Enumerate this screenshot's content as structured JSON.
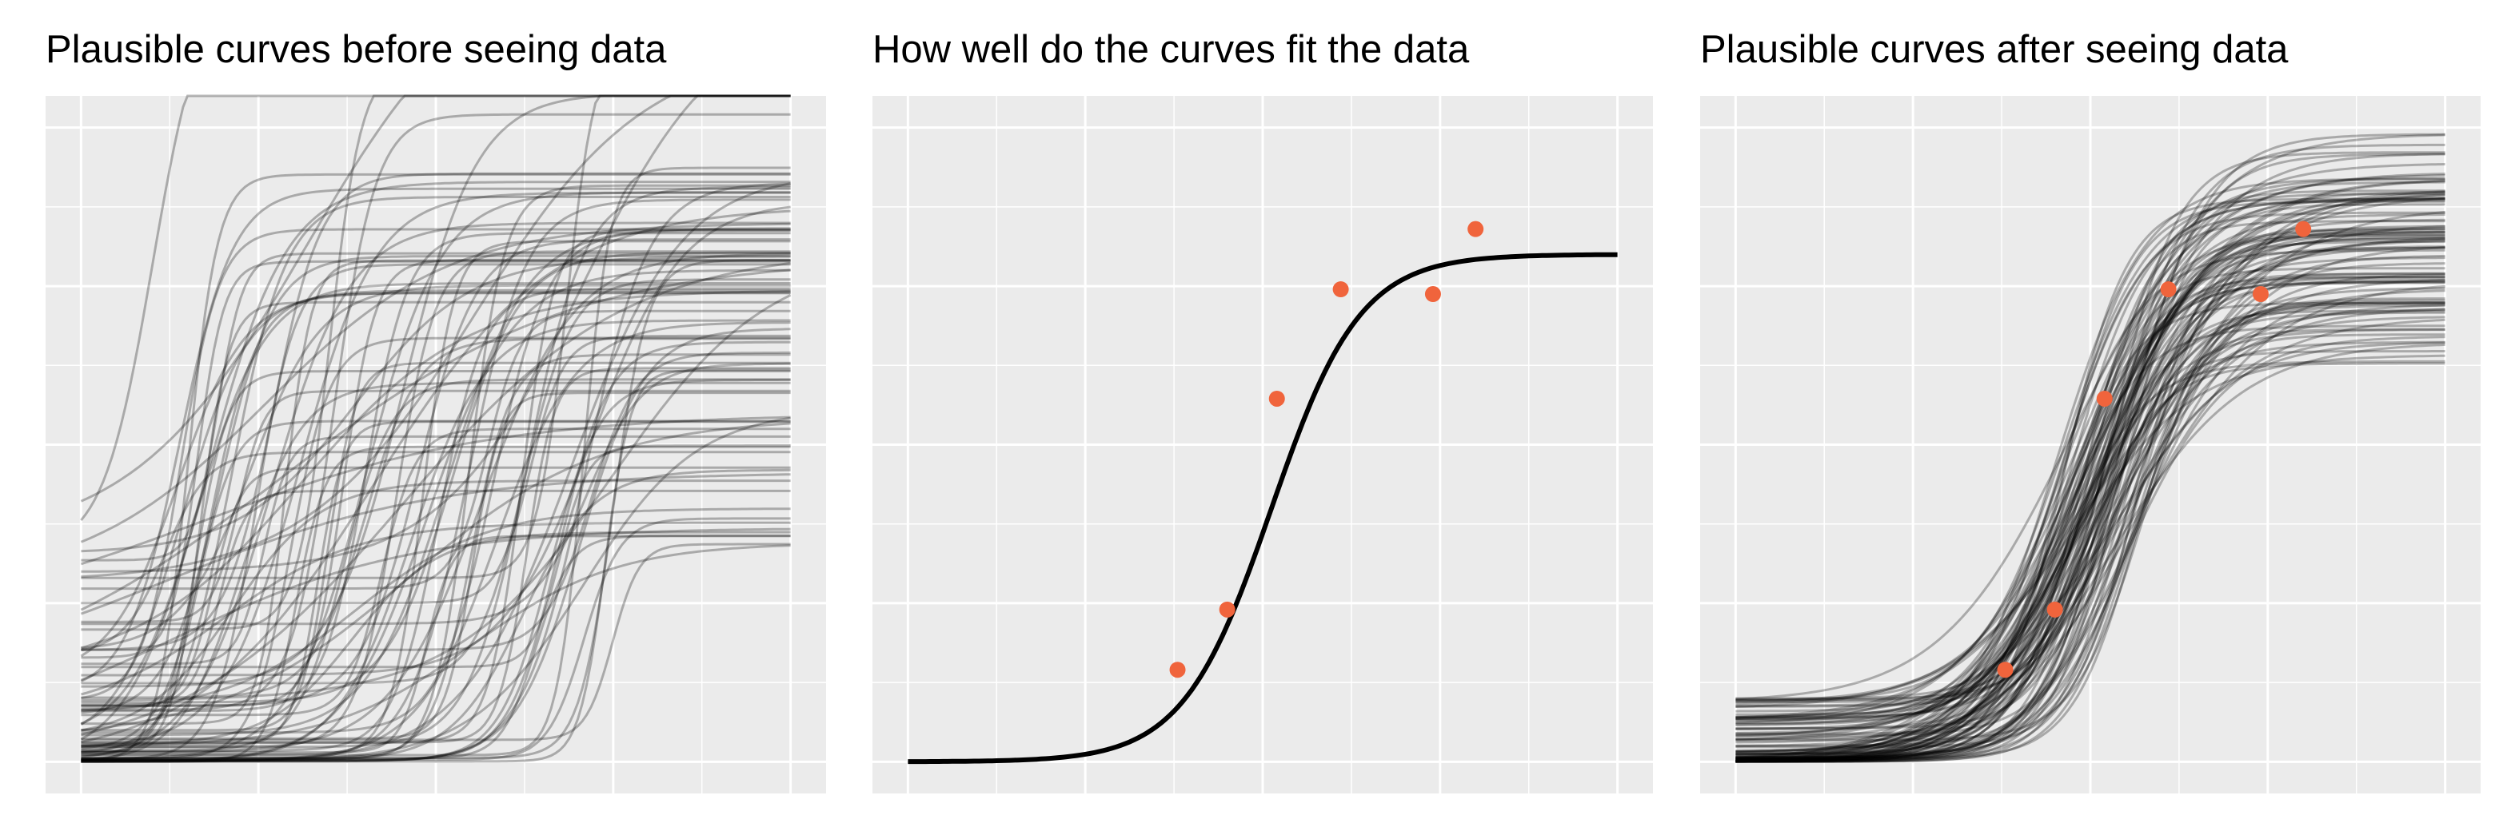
{
  "panels": [
    {
      "title": "Plausible curves before seeing data"
    },
    {
      "title": "How well do the curves fit the data"
    },
    {
      "title": "Plausible curves after seeing data"
    }
  ],
  "colors": {
    "panel_background": "#EBEBEB",
    "gridline": "#FFFFFF",
    "curve": "#000000",
    "point": "#F0643C"
  },
  "chart_data": [
    {
      "type": "line",
      "title": "Plausible curves before seeing data",
      "description_of_series": "about 100 semi-transparent logistic prior draws",
      "xlim": [
        -0.2,
        4.2
      ],
      "ylim": [
        -0.2,
        4.2
      ],
      "x_tick_labels": [],
      "y_tick_labels": [],
      "grid": true,
      "series_count": 100,
      "series_alpha": 0.28,
      "series_form": "y = floor + cap / (1 + exp(-rate * (x - mid)))",
      "parameter_ranges": {
        "mid": [
          0.4,
          3.0
        ],
        "rate": [
          1.2,
          14.0
        ],
        "cap": [
          1.2,
          3.8
        ],
        "floor": [
          0.0,
          1.4
        ]
      }
    },
    {
      "type": "line",
      "title": "How well do the curves fit the data",
      "xlim": [
        -0.2,
        4.2
      ],
      "ylim": [
        -0.2,
        4.2
      ],
      "x_tick_labels": [],
      "y_tick_labels": [],
      "grid": true,
      "series": [
        {
          "form": "logistic",
          "mid": 2.05,
          "rate": 4.0,
          "cap": 3.2,
          "floor": 0.0
        }
      ],
      "points": [
        {
          "x": 1.52,
          "y": 0.58
        },
        {
          "x": 1.8,
          "y": 0.96
        },
        {
          "x": 2.08,
          "y": 2.29
        },
        {
          "x": 2.44,
          "y": 2.98
        },
        {
          "x": 2.96,
          "y": 2.95
        },
        {
          "x": 3.2,
          "y": 3.36
        }
      ]
    },
    {
      "type": "line",
      "title": "Plausible curves after seeing data",
      "xlim": [
        -0.2,
        4.2
      ],
      "ylim": [
        -0.2,
        4.2
      ],
      "x_tick_labels": [],
      "y_tick_labels": [],
      "grid": true,
      "series_count": 100,
      "series_alpha": 0.28,
      "series_form": "y = floor + cap / (1 + exp(-rate * (x - mid)))",
      "parameter_ranges": {
        "mid": [
          1.8,
          2.3
        ],
        "rate": [
          2.5,
          5.5
        ],
        "cap": [
          2.5,
          3.7
        ],
        "floor": [
          0.0,
          0.4
        ]
      },
      "points": [
        {
          "x": 1.52,
          "y": 0.58
        },
        {
          "x": 1.8,
          "y": 0.96
        },
        {
          "x": 2.08,
          "y": 2.29
        },
        {
          "x": 2.44,
          "y": 2.98
        },
        {
          "x": 2.96,
          "y": 2.95
        },
        {
          "x": 3.2,
          "y": 3.36
        }
      ]
    }
  ]
}
